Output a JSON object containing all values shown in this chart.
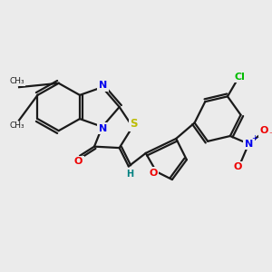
{
  "bg_color": "#ebebeb",
  "bond_color": "#1a1a1a",
  "atom_colors": {
    "N": "#0000ee",
    "S": "#bbbb00",
    "O": "#ee0000",
    "Cl": "#00bb00",
    "H": "#008080",
    "C": "#1a1a1a"
  },
  "figsize": [
    3.0,
    3.0
  ],
  "dpi": 100
}
